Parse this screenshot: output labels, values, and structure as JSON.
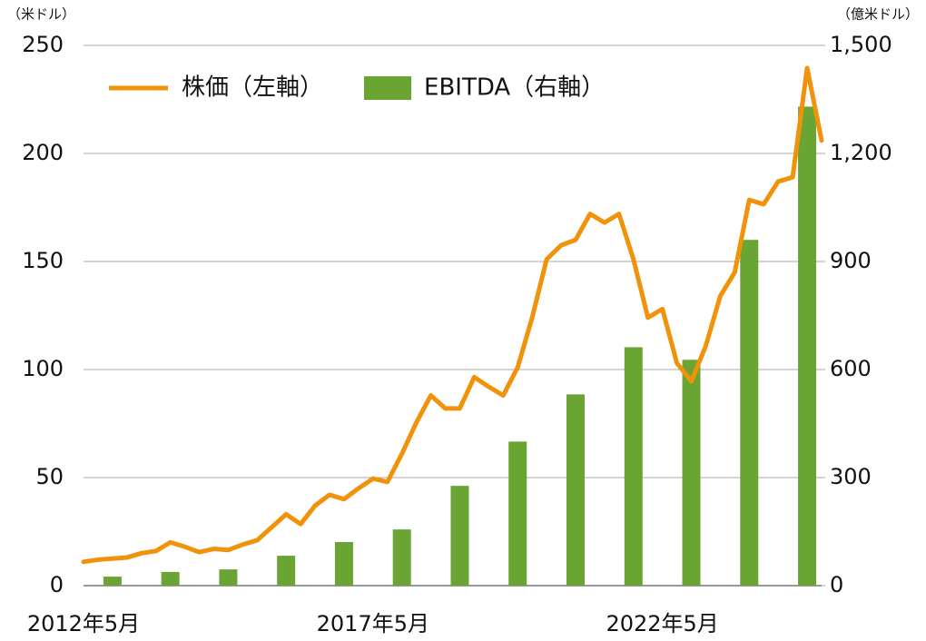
{
  "chart_data": {
    "type": "combo",
    "y_unit": "（米ドル）",
    "y2_unit": "（億米ドル）",
    "categories": [
      "2012年5月",
      null,
      null,
      null,
      null,
      null,
      null,
      null,
      null,
      null,
      null,
      null,
      null,
      null,
      null,
      null,
      null,
      null,
      null,
      null,
      "2017年5月",
      null,
      null,
      null,
      null,
      null,
      null,
      null,
      null,
      null,
      null,
      null,
      null,
      null,
      null,
      null,
      null,
      null,
      null,
      null,
      "2022年5月",
      null,
      null,
      null,
      null,
      null,
      null,
      null,
      null,
      null,
      null,
      null
    ],
    "series": [
      {
        "name": "株価（左軸）",
        "type": "line",
        "color": "#f0920a",
        "values": [
          11,
          12,
          12.5,
          13,
          15,
          16,
          20,
          18,
          15.5,
          17,
          16.5,
          19,
          21,
          27,
          33,
          28.5,
          37,
          42,
          40,
          45,
          49.5,
          48,
          61,
          75.5,
          88,
          82,
          82,
          96.5,
          92,
          88,
          101,
          124,
          151,
          157.5,
          160,
          172,
          168,
          172,
          151,
          124,
          128,
          103,
          94.5,
          111,
          134,
          145,
          178.5,
          176.5,
          187,
          189,
          239.5,
          206
        ]
      },
      {
        "name": "EBITDA（右軸）",
        "type": "bar",
        "color": "#6aa534",
        "axis": "y2",
        "values": [
          null,
          null,
          25,
          null,
          null,
          null,
          38,
          null,
          null,
          null,
          45,
          null,
          null,
          null,
          83,
          null,
          null,
          null,
          121,
          null,
          null,
          null,
          156,
          null,
          null,
          null,
          277,
          null,
          null,
          null,
          400,
          null,
          null,
          null,
          531,
          null,
          null,
          null,
          662,
          null,
          null,
          null,
          627,
          null,
          null,
          null,
          960,
          null,
          null,
          null,
          1330,
          null
        ]
      }
    ],
    "ylim": [
      0,
      250
    ],
    "yticks": [
      0,
      50,
      100,
      150,
      200,
      250
    ],
    "y2lim": [
      0,
      1500
    ],
    "y2ticks": [
      0,
      300,
      600,
      900,
      {
        "value": 1200,
        "label": "1,200"
      },
      {
        "value": 1500,
        "label": "1,500"
      }
    ],
    "grid": true,
    "legend": "upper-left"
  }
}
